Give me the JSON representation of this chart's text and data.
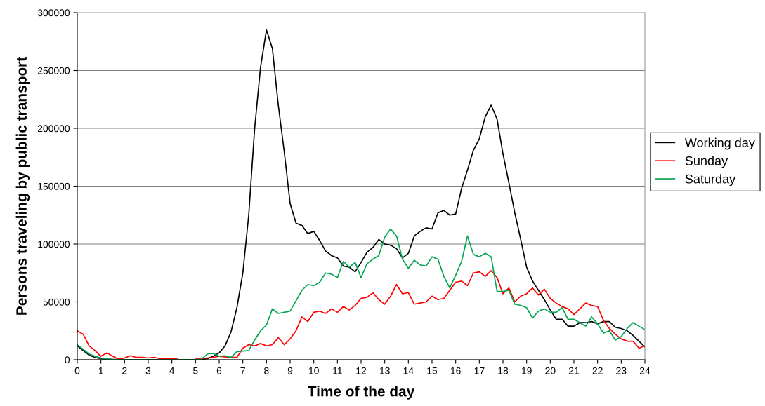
{
  "chart_data": {
    "type": "line",
    "xlabel": "Time of the day",
    "ylabel": "Persons traveling by public transport",
    "x": [
      0,
      0.25,
      0.5,
      0.75,
      1,
      1.25,
      1.5,
      1.75,
      2,
      2.25,
      2.5,
      2.75,
      3,
      3.25,
      3.5,
      3.75,
      4,
      4.25,
      4.5,
      4.75,
      5,
      5.25,
      5.5,
      5.75,
      6,
      6.25,
      6.5,
      6.75,
      7,
      7.25,
      7.5,
      7.75,
      8,
      8.25,
      8.5,
      8.75,
      9,
      9.25,
      9.5,
      9.75,
      10,
      10.25,
      10.5,
      10.75,
      11,
      11.25,
      11.5,
      11.75,
      12,
      12.25,
      12.5,
      12.75,
      13,
      13.25,
      13.5,
      13.75,
      14,
      14.25,
      14.5,
      14.75,
      15,
      15.25,
      15.5,
      15.75,
      16,
      16.25,
      16.5,
      16.75,
      17,
      17.25,
      17.5,
      17.75,
      18,
      18.25,
      18.5,
      18.75,
      19,
      19.25,
      19.5,
      19.75,
      20,
      20.25,
      20.5,
      20.75,
      21,
      21.25,
      21.5,
      21.75,
      22,
      22.25,
      22.5,
      22.75,
      23,
      23.25,
      23.5,
      23.75,
      24
    ],
    "series": [
      {
        "name": "Working day",
        "color": "#000000",
        "values": [
          12000,
          8000,
          4000,
          2000,
          1000,
          500,
          300,
          200,
          100,
          100,
          100,
          100,
          100,
          100,
          100,
          100,
          100,
          100,
          100,
          100,
          100,
          300,
          1000,
          3000,
          6000,
          12000,
          24000,
          45000,
          75000,
          125000,
          200000,
          253000,
          285000,
          269000,
          220000,
          180000,
          135000,
          118000,
          116000,
          109000,
          111000,
          103000,
          94000,
          90000,
          88000,
          81000,
          80000,
          76000,
          84000,
          93000,
          97000,
          104000,
          100000,
          99000,
          96000,
          88000,
          92000,
          107000,
          111000,
          114000,
          113000,
          127000,
          129000,
          125000,
          126000,
          148000,
          164000,
          181000,
          191000,
          210000,
          220000,
          208000,
          178000,
          153000,
          127000,
          104000,
          80000,
          68000,
          60000,
          52000,
          43000,
          35000,
          35000,
          29000,
          29000,
          32000,
          32000,
          33000,
          31000,
          33000,
          33000,
          28000,
          27000,
          25000,
          21000,
          16000,
          11000
        ]
      },
      {
        "name": "Sunday",
        "color": "#ff0000",
        "values": [
          25000,
          22000,
          12000,
          8000,
          3000,
          6000,
          3000,
          500,
          1500,
          3500,
          2000,
          2000,
          1500,
          2000,
          1000,
          1000,
          1000,
          500,
          null,
          null,
          500,
          1000,
          1500,
          2000,
          3000,
          2500,
          2000,
          2000,
          10000,
          13000,
          12000,
          14000,
          12000,
          13000,
          19000,
          13000,
          18000,
          25000,
          37000,
          33000,
          41000,
          42000,
          40000,
          44000,
          41000,
          46000,
          43000,
          47000,
          53000,
          54000,
          58000,
          52000,
          48000,
          55000,
          65000,
          57000,
          58000,
          48000,
          49000,
          50000,
          55000,
          52000,
          53000,
          60000,
          67000,
          68000,
          64000,
          75000,
          76000,
          72000,
          77000,
          71000,
          57000,
          62000,
          50000,
          55000,
          57000,
          62000,
          56000,
          61000,
          53000,
          49000,
          46000,
          44000,
          39000,
          44000,
          49000,
          47000,
          46000,
          34000,
          27000,
          22000,
          18000,
          16000,
          16000,
          10000,
          12000
        ]
      },
      {
        "name": "Saturday",
        "color": "#00a651",
        "values": [
          13000,
          9000,
          5000,
          3000,
          1500,
          500,
          200,
          100,
          0,
          0,
          0,
          0,
          0,
          0,
          0,
          0,
          0,
          0,
          0,
          0,
          0,
          500,
          5000,
          5500,
          3000,
          3500,
          2000,
          7000,
          7500,
          8000,
          17000,
          25000,
          30000,
          44000,
          40000,
          41000,
          42000,
          51000,
          60000,
          65000,
          64000,
          67000,
          75000,
          74000,
          71000,
          85000,
          80000,
          84000,
          71000,
          83000,
          87000,
          90000,
          106000,
          113000,
          107000,
          87000,
          79000,
          86000,
          82000,
          81000,
          89000,
          87000,
          72000,
          62000,
          73000,
          85000,
          107000,
          91000,
          89000,
          92000,
          89000,
          59000,
          59000,
          60000,
          48000,
          47000,
          45000,
          36000,
          42000,
          44000,
          41000,
          41000,
          45000,
          35000,
          35000,
          32000,
          29000,
          37000,
          31000,
          23000,
          25000,
          17000,
          20000,
          27000,
          32000,
          29000,
          26000
        ]
      }
    ],
    "xlim": [
      0,
      24
    ],
    "xticks": [
      0,
      1,
      2,
      3,
      4,
      5,
      6,
      7,
      8,
      9,
      10,
      11,
      12,
      13,
      14,
      15,
      16,
      17,
      18,
      19,
      20,
      21,
      22,
      23,
      24
    ],
    "ylim": [
      0,
      300000
    ],
    "yticks": [
      0,
      50000,
      100000,
      150000,
      200000,
      250000,
      300000
    ],
    "grid": "y",
    "legend": "right",
    "marker": "none",
    "line_style": "solid"
  }
}
